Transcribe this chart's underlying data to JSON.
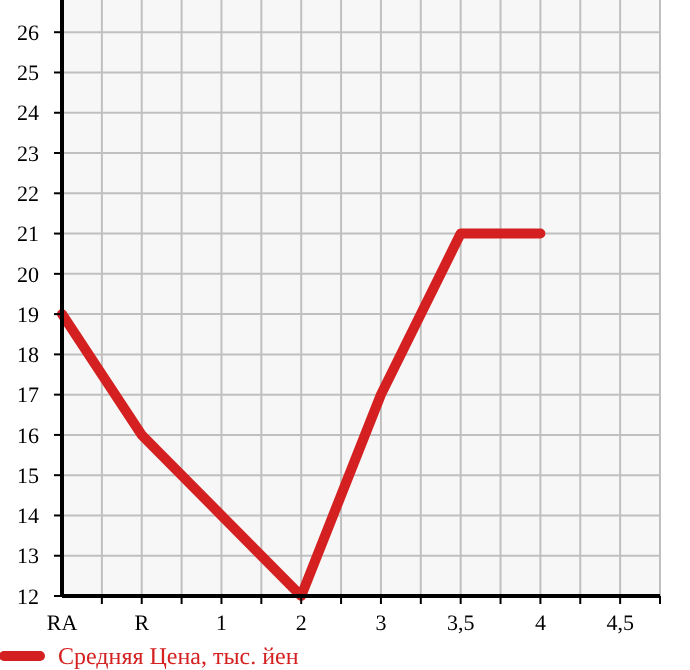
{
  "chart_data": {
    "type": "line",
    "categories": [
      "RA",
      "R",
      "1",
      "2",
      "3",
      "3,5",
      "4",
      "4,5"
    ],
    "series": [
      {
        "name": "Средняя Цена, тыс. йен",
        "color": "#d42020",
        "values": [
          19,
          16,
          14,
          12,
          17,
          21,
          21,
          null
        ]
      }
    ],
    "ylim": [
      12,
      26.8
    ],
    "yticks": [
      12,
      13,
      14,
      15,
      16,
      17,
      18,
      19,
      20,
      21,
      22,
      23,
      24,
      25,
      26
    ],
    "grid": true,
    "legend": "bottom",
    "marker": "none",
    "line_style": "solid"
  }
}
